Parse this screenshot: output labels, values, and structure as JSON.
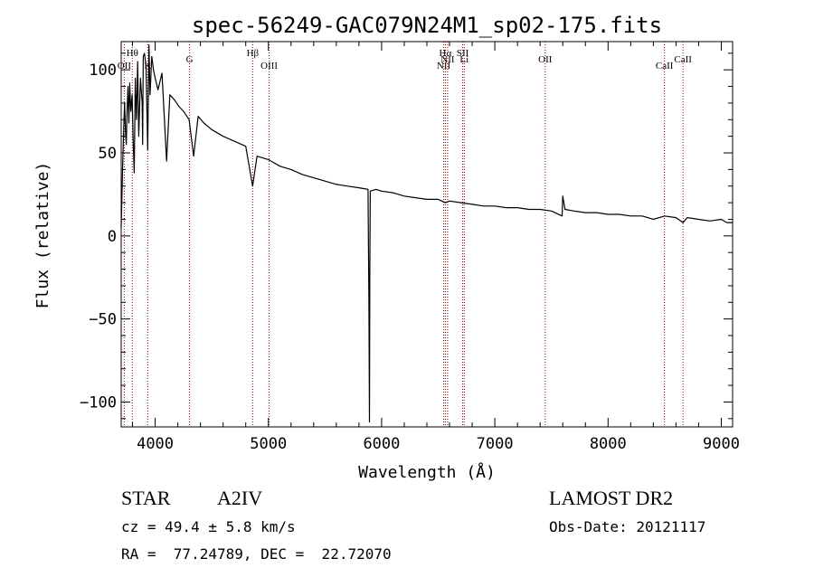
{
  "chart_data": {
    "type": "line",
    "title": "spec-56249-GAC079N24M1_sp02-175.fits",
    "xlabel": "Wavelength (Å)",
    "ylabel": "Flux (relative)",
    "xlim": [
      3700,
      9100
    ],
    "ylim": [
      -115,
      117
    ],
    "xticks": [
      4000,
      5000,
      6000,
      7000,
      8000,
      9000
    ],
    "yticks": [
      -100,
      -50,
      0,
      50,
      100
    ],
    "grid": false,
    "series": [
      {
        "x": [
          3700,
          3712,
          3722,
          3730,
          3738,
          3745,
          3752,
          3760,
          3768,
          3775,
          3785,
          3797,
          3805,
          3815,
          3825,
          3835,
          3845,
          3855,
          3870,
          3885,
          3889,
          3895,
          3905,
          3920,
          3934,
          3945,
          3955,
          3970,
          3985,
          4000,
          4025,
          4060,
          4101,
          4130,
          4170,
          4210,
          4250,
          4300,
          4340,
          4380,
          4430,
          4500,
          4600,
          4700,
          4800,
          4861,
          4900,
          5000,
          5100,
          5200,
          5300,
          5400,
          5500,
          5600,
          5700,
          5800,
          5880,
          5888,
          5893,
          5896,
          5900,
          5950,
          6000,
          6100,
          6200,
          6300,
          6400,
          6500,
          6563,
          6600,
          6700,
          6800,
          6900,
          7000,
          7100,
          7200,
          7300,
          7400,
          7500,
          7594,
          7600,
          7620,
          7700,
          7800,
          7900,
          8000,
          8100,
          8200,
          8300,
          8350,
          8400,
          8500,
          8600,
          8662,
          8700,
          8800,
          8900,
          9000,
          9050,
          9100
        ],
        "y": [
          5,
          40,
          65,
          80,
          62,
          55,
          75,
          90,
          68,
          92,
          75,
          85,
          60,
          38,
          95,
          70,
          105,
          60,
          95,
          80,
          55,
          108,
          110,
          102,
          52,
          115,
          85,
          108,
          100,
          95,
          88,
          98,
          45,
          85,
          82,
          78,
          75,
          70,
          48,
          72,
          68,
          64,
          60,
          57,
          54,
          30,
          48,
          46,
          42,
          40,
          37,
          35,
          33,
          31,
          30,
          29,
          28,
          -40,
          -112,
          -20,
          27,
          28,
          27,
          26,
          24,
          23,
          22,
          22,
          20,
          21,
          20,
          19,
          18,
          18,
          17,
          17,
          16,
          16,
          15,
          12,
          24,
          16,
          15,
          14,
          14,
          13,
          13,
          12,
          12,
          11,
          10,
          12,
          11,
          8,
          11,
          10,
          9,
          10,
          8,
          8
        ]
      }
    ],
    "lines": [
      {
        "label": "OII",
        "x": 3727,
        "row": 2
      },
      {
        "label": "Hθ",
        "x": 3798,
        "row": 1
      },
      {
        "label": "K",
        "x": 3934,
        "row": 2
      },
      {
        "label": "G",
        "x": 4304,
        "row": 1.5
      },
      {
        "label": "Hβ",
        "x": 4861,
        "row": 1
      },
      {
        "label": "OIII",
        "x": 5007,
        "row": 2
      },
      {
        "label": "NII",
        "x": 6548,
        "row": 2
      },
      {
        "label": "Hα",
        "x": 6563,
        "row": 1
      },
      {
        "label": "NII",
        "x": 6583,
        "row": 1.5
      },
      {
        "label": "SII",
        "x": 6716,
        "row": 1
      },
      {
        "label": "Li",
        "x": 6730,
        "row": 1.5
      },
      {
        "label": "OII",
        "x": 7445,
        "row": 1.5
      },
      {
        "label": "CaII",
        "x": 8498,
        "row": 2
      },
      {
        "label": "CaII",
        "x": 8662,
        "row": 1.5
      }
    ],
    "info": {
      "class": "STAR",
      "subclass": "A2IV",
      "survey": "LAMOST DR2",
      "cz": "cz = 49.4 ± 5.8 km/s",
      "obsdate": "Obs-Date: 20121117",
      "radec": "RA =  77.24789, DEC =  22.72070"
    },
    "colors": {
      "spectrum": "#000000",
      "marker": "#8b0000",
      "axis": "#000000"
    }
  }
}
